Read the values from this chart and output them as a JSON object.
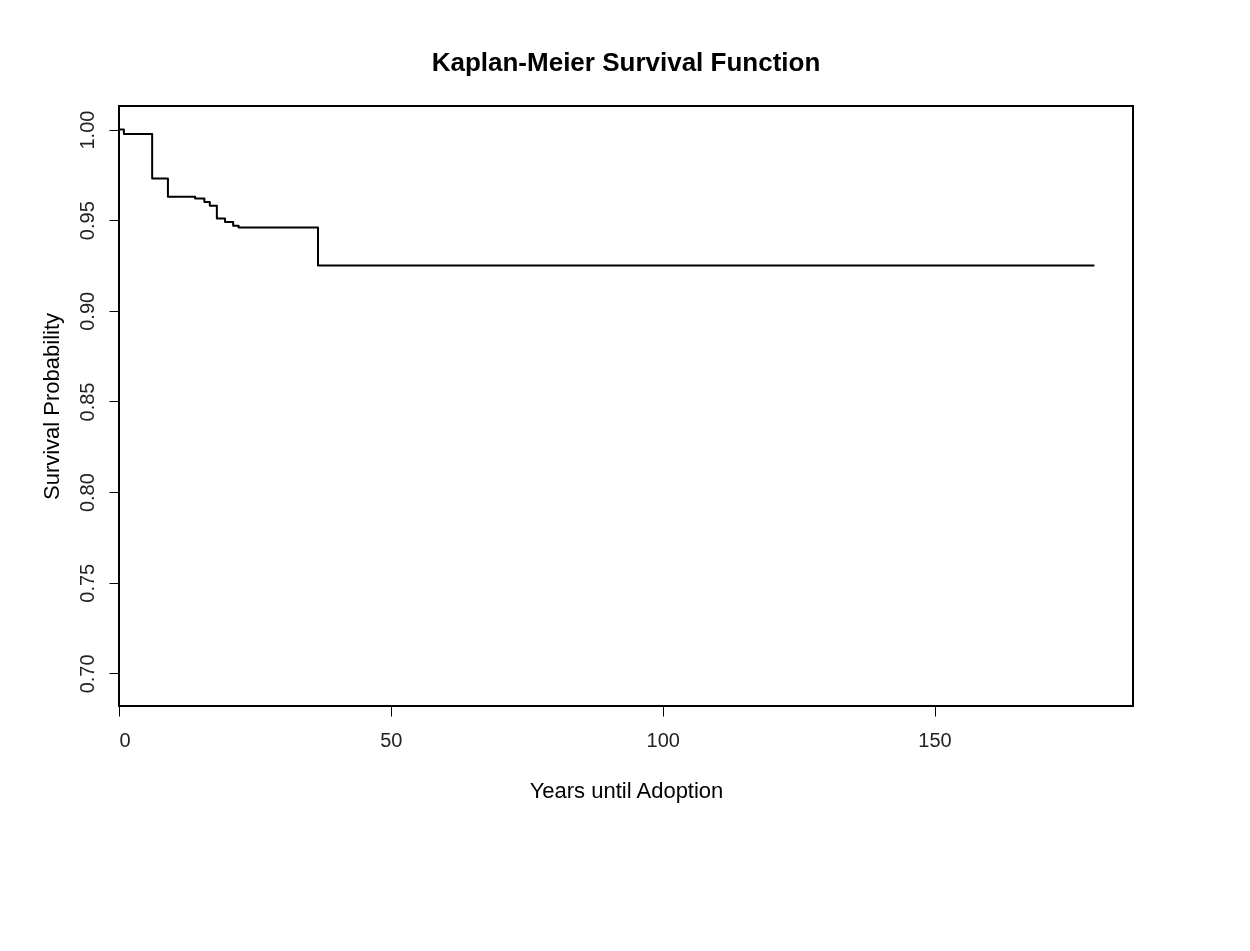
{
  "chart_data": {
    "type": "step",
    "title": "Kaplan-Meier Survival Function",
    "xlabel": "Years until Adoption",
    "ylabel": "Survival Probability",
    "x": [
      0,
      0.9,
      6.1,
      9.0,
      14.0,
      15.7,
      16.7,
      18.0,
      19.5,
      21.0,
      22.0,
      36.6,
      179.4
    ],
    "series": [
      {
        "color": "#000000",
        "values": [
          1.0,
          0.9976,
          0.973,
          0.963,
          0.962,
          0.96,
          0.958,
          0.951,
          0.949,
          0.947,
          0.946,
          0.925,
          0.925
        ]
      }
    ],
    "xlim": [
      0,
      186.5
    ],
    "ylim": [
      0.682,
      1.013
    ],
    "xticks": [
      0,
      50,
      100,
      150
    ],
    "yticks": [
      {
        "value": 0.7,
        "label": "0.70"
      },
      0.75,
      {
        "value": 0.8,
        "label": "0.80"
      },
      0.85,
      {
        "value": 0.9,
        "label": "0.90"
      },
      0.95,
      {
        "value": 1.0,
        "label": "1.00"
      }
    ],
    "grid": false,
    "marker": "none",
    "line_style": "solid"
  }
}
